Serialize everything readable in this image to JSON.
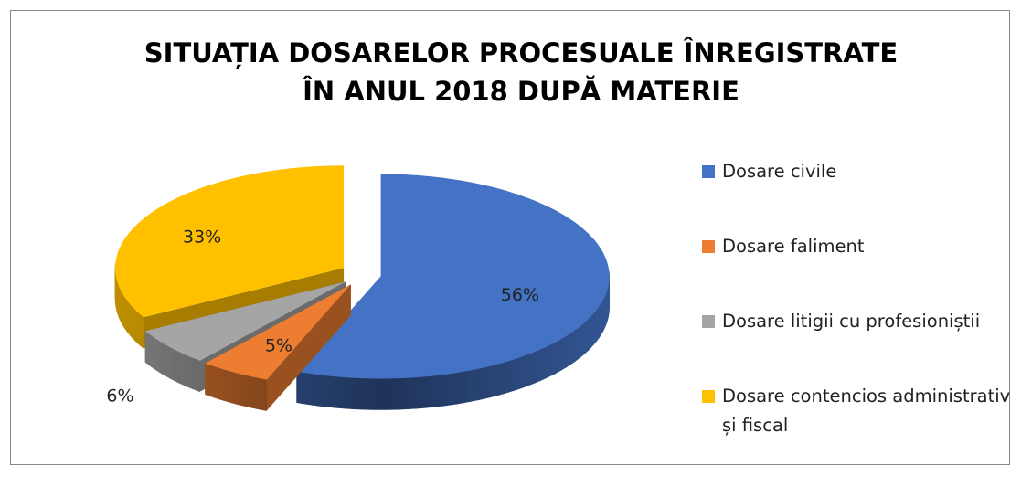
{
  "chart_data": {
    "type": "pie",
    "title": [
      "SITUAȚIA DOSARELOR PROCESUALE ÎNREGISTRATE",
      "ÎN ANUL 2018 DUPĂ MATERIE"
    ],
    "categories": [
      "Dosare civile",
      "Dosare faliment",
      "Dosare litigii cu profesioniștii",
      "Dosare contencios administrativ și fiscal"
    ],
    "values": [
      56,
      5,
      6,
      33
    ],
    "value_labels": [
      "56%",
      "5%",
      "6%",
      "33%"
    ],
    "colors": [
      "#4472c4",
      "#ed7d31",
      "#a5a5a5",
      "#ffc000"
    ],
    "legend": "right"
  }
}
